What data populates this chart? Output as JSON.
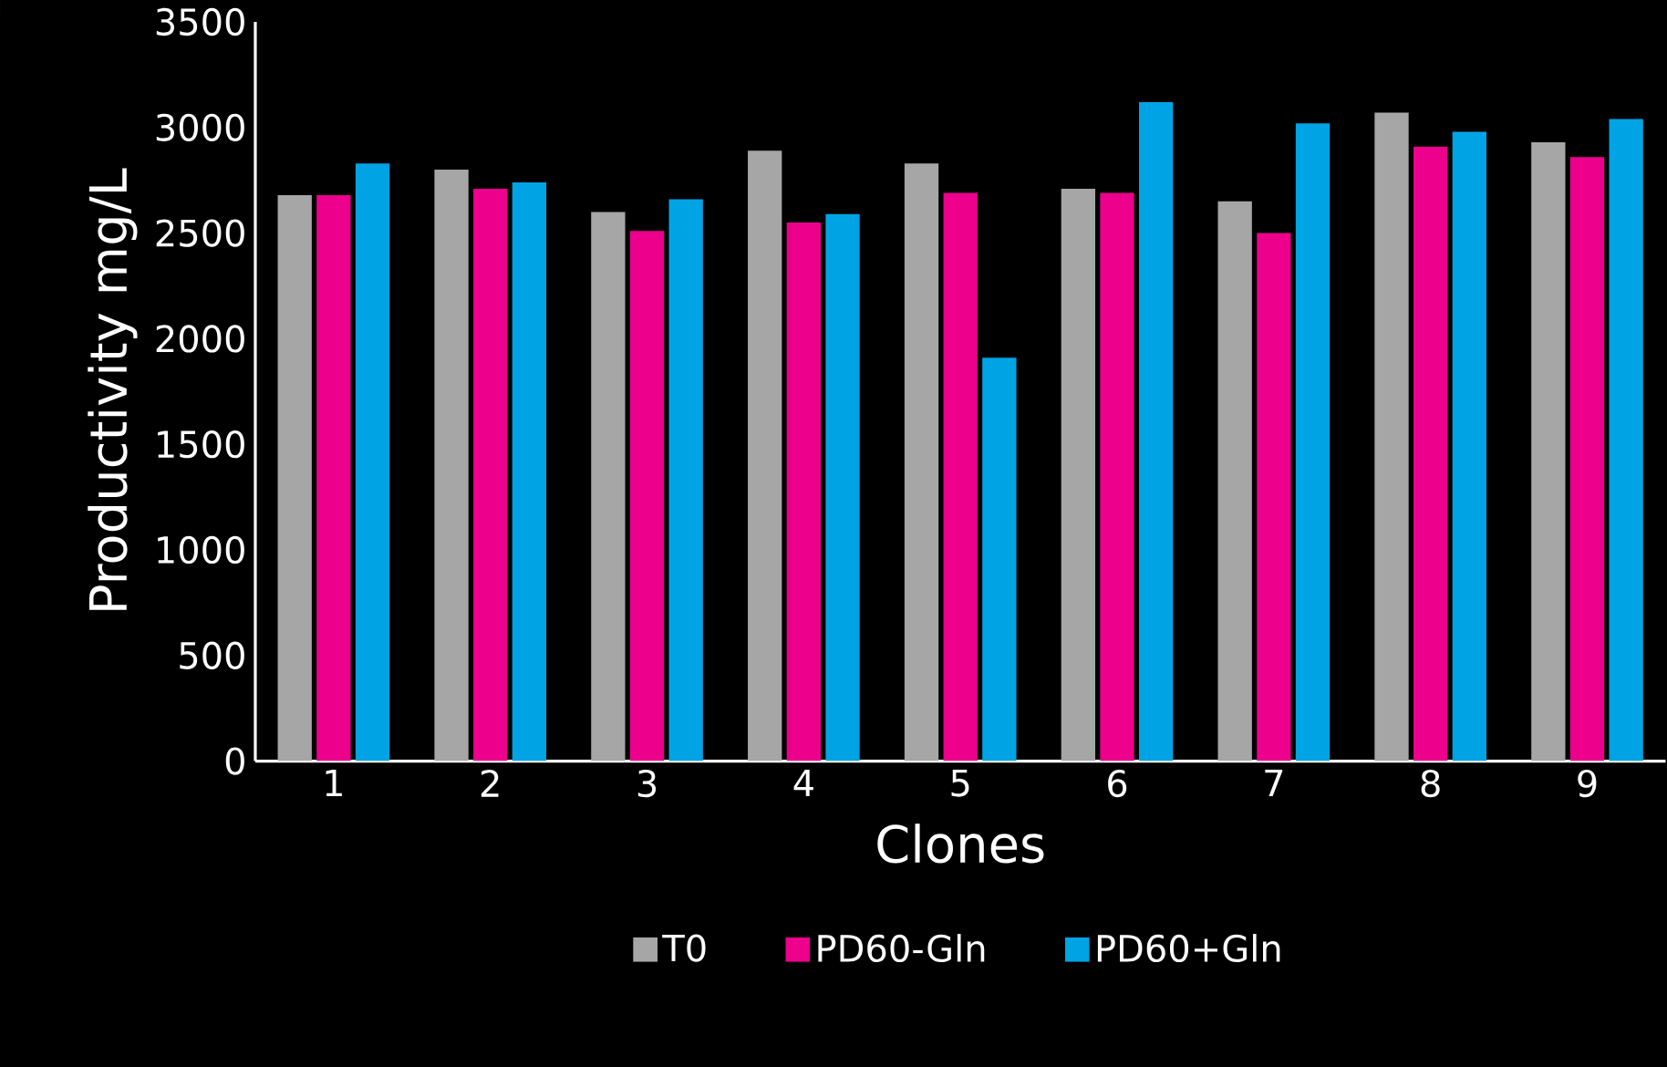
{
  "chart_data": {
    "type": "bar",
    "xlabel": "Clones",
    "ylabel": "Productivity mg/L",
    "categories": [
      "1",
      "2",
      "3",
      "4",
      "5",
      "6",
      "7",
      "8",
      "9"
    ],
    "series": [
      {
        "name": "T0",
        "color": "#a6a6a6",
        "values": [
          2680,
          2800,
          2600,
          2890,
          2830,
          2710,
          2650,
          3070,
          2930
        ]
      },
      {
        "name": "PD60-Gln",
        "color": "#ec008c",
        "values": [
          2680,
          2710,
          2510,
          2550,
          2690,
          2690,
          2500,
          2910,
          2860
        ]
      },
      {
        "name": "PD60+Gln",
        "color": "#00a3e4",
        "values": [
          2830,
          2740,
          2660,
          2590,
          1910,
          3120,
          3020,
          2980,
          3040
        ]
      }
    ],
    "ylim": [
      0,
      3500
    ],
    "yticks": [
      0,
      500,
      1000,
      1500,
      2000,
      2500,
      3000,
      3500
    ],
    "grid": false,
    "legend": "bottom"
  }
}
